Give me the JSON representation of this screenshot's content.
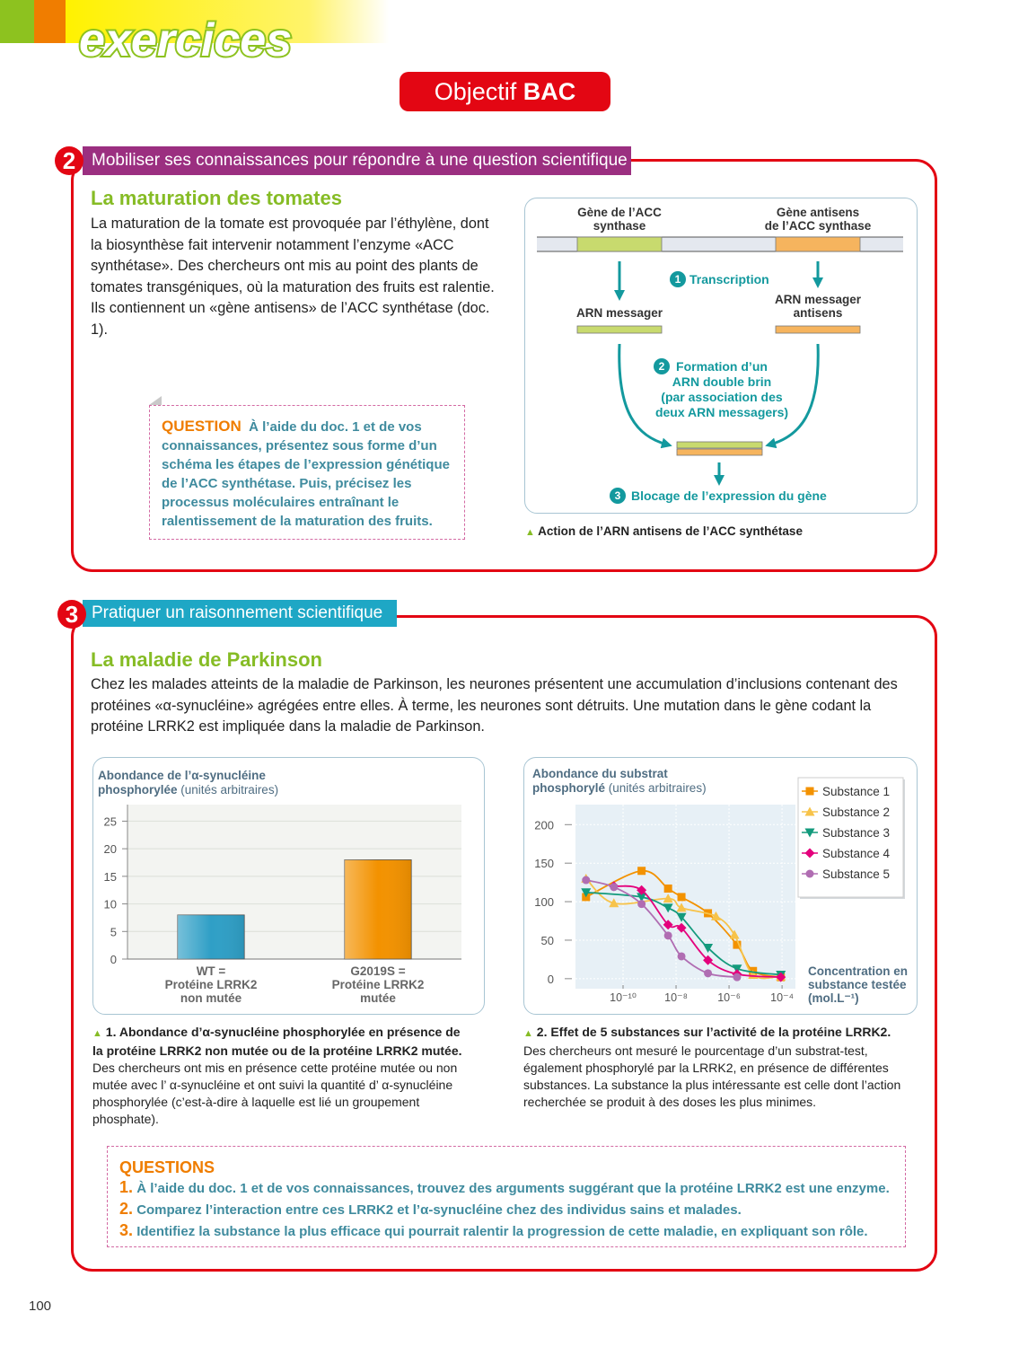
{
  "header": {
    "banner": "exercices",
    "badge_prefix": "Objectif",
    "badge_bold": "BAC"
  },
  "exercise2": {
    "number": "2",
    "skill": "Mobiliser ses connaissances pour répondre à une question scientifique",
    "title": "La maturation des tomates",
    "text": "La maturation de la tomate est provoquée par l’éthylène, dont la biosynthèse fait intervenir notamment l’enzyme «ACC synthétase». Des chercheurs ont mis au point des plants de tomates transgéniques, où la maturation des fruits est ralentie. Ils contiennent un «gène antisens» de l’ACC synthétase (doc. 1).",
    "question_label": "QUESTION",
    "question_text": "À l’aide du doc. 1 et de vos connaissances, présentez sous forme d’un schéma les étapes de l’expression génétique de l’ACC synthétase. Puis, précisez les processus moléculaires entraînant le ralentissement de la maturation des fruits.",
    "diagram": {
      "gene1": "Gène de l’ACC\nsynthase",
      "gene2": "Gène antisens\nde l’ACC synthase",
      "step1_num": "1",
      "step1": "Transcription",
      "mrna1": "ARN messager",
      "mrna2": "ARN messager\nantisens",
      "step2_num": "2",
      "step2": "Formation d’un\nARN double brin",
      "step2_note": "(par association des\ndeux ARN messagers)",
      "step3_num": "3",
      "step3": "Blocage de l’expression du gène",
      "caption": "Action de l’ARN antisens de l’ACC synthétase"
    }
  },
  "exercise3": {
    "number": "3",
    "skill": "Pratiquer un raisonnement scientifique",
    "title": "La maladie de Parkinson",
    "text": "Chez les malades atteints de la maladie de Parkinson, les neurones présentent une accumulation d’inclusions contenant des protéines «α-synucléine» agrégées entre elles. À terme, les neurones sont détruits. Une mutation dans le gène codant la protéine LRRK2 est impliquée dans la maladie de Parkinson.",
    "doc1_caption_bold": "1. Abondance d’α-synucléine phosphorylée en présence de la protéine LRRK2 non mutée ou de la protéine LRRK2 mutée.",
    "doc1_caption": "Des chercheurs ont mis en présence cette protéine mutée ou non mutée avec l’ α-synucléine et ont suivi la quantité d’ α-synucléine phosphorylée (c’est-à-dire à laquelle est lié un groupement phosphate).",
    "doc2_caption_bold": "2. Effet de 5 substances sur l’activité de la protéine LRRK2.",
    "doc2_caption": "Des chercheurs ont mesuré le pourcentage d’un substrat-test, également phosphorylé par la LRRK2, en présence de différentes substances. La substance la plus intéressante est celle dont l’action recherchée se produit à des doses les plus minimes.",
    "questions_label": "QUESTIONS",
    "questions": [
      {
        "num": "1.",
        "text": "À l’aide du doc. 1 et de vos connaissances, trouvez des arguments suggérant que la protéine LRRK2 est une enzyme."
      },
      {
        "num": "2.",
        "text": "Comparez l’interaction entre ces LRRK2 et l’α-synucléine chez des individus sains et malades."
      },
      {
        "num": "3.",
        "text": "Identifiez la substance la plus efficace qui pourrait ralentir la progression de cette maladie, en expliquant son rôle."
      }
    ]
  },
  "chart_data": [
    {
      "type": "bar",
      "y_label": "Abondance de l’α-synucléine\nphosphorylée",
      "y_unit": "(unités arbitraires)",
      "categories": [
        "WT =\nProtéine LRRK2\nnon mutée",
        "G2019S =\nProtéine LRRK2\nmutée"
      ],
      "values": [
        8,
        18
      ],
      "colors": [
        "#2f9fc6",
        "#f39200"
      ],
      "ylim": [
        0,
        28
      ],
      "yticks": [
        0,
        5,
        10,
        15,
        20,
        25
      ],
      "grid": true
    },
    {
      "type": "line",
      "y_label": "Abondance du substrat\nphosphorylé",
      "y_unit": "(unités arbitraires)",
      "x_label": "Concentration en\nsubstance testée\n(mol.L⁻¹)",
      "x_log": true,
      "xlim": [
        1.6e-12,
        0.00032
      ],
      "xticks": [
        {
          "value": 1e-10,
          "label": "10⁻¹⁰"
        },
        {
          "value": 1e-08,
          "label": "10⁻⁸"
        },
        {
          "value": 1e-06,
          "label": "10⁻⁶"
        },
        {
          "value": 0.0001,
          "label": "10⁻⁴"
        }
      ],
      "ylim": [
        -13,
        226
      ],
      "yticks": [
        0,
        50,
        100,
        150,
        200
      ],
      "grid": true,
      "legend": "upper right",
      "series": [
        {
          "name": "Substance 1",
          "color": "#f39200",
          "marker": "square",
          "x": [
            4e-12,
            5e-10,
            5e-09,
            1.6e-08,
            1.6e-07,
            2e-06,
            8e-06,
            9e-05
          ],
          "values": [
            106,
            140,
            117,
            106,
            85,
            44,
            10,
            2
          ]
        },
        {
          "name": "Substance 2",
          "color": "#f7c34a",
          "marker": "triangle",
          "x": [
            4e-12,
            4.5e-11,
            5e-09,
            1.6e-08,
            3.2e-07,
            1.6e-06,
            8e-06,
            9e-05
          ],
          "values": [
            130,
            98,
            104,
            92,
            81,
            57,
            5,
            3
          ]
        },
        {
          "name": "Substance 3",
          "color": "#139a7c",
          "marker": "triangle-down",
          "x": [
            4e-12,
            5e-10,
            5e-09,
            1.6e-08,
            1.6e-07,
            2e-06,
            9e-05
          ],
          "values": [
            112,
            106,
            92,
            80,
            40,
            13,
            5
          ]
        },
        {
          "name": "Substance 4",
          "color": "#e4007c",
          "marker": "diamond",
          "x": [
            4.5e-11,
            5e-10,
            5e-09,
            1.6e-08,
            1.6e-07,
            2e-06,
            9e-05
          ],
          "values": [
            120,
            115,
            70,
            66,
            24,
            6,
            2
          ]
        },
        {
          "name": "Substance 5",
          "color": "#b06db2",
          "marker": "circle",
          "x": [
            4e-12,
            4.5e-11,
            5e-10,
            5e-09,
            1.6e-08,
            1.6e-07,
            2e-06
          ],
          "values": [
            128,
            119,
            97,
            56,
            29,
            7,
            2
          ]
        }
      ]
    }
  ],
  "page_number": "100"
}
